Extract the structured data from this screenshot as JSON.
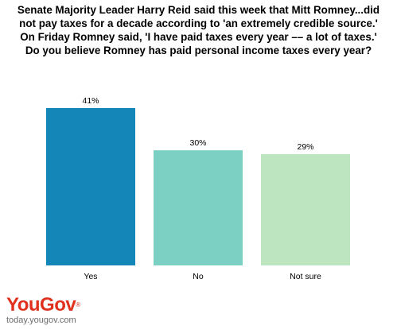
{
  "title_lines": [
    "Senate Majority Leader Harry Reid said this week that Mitt Romney...did",
    "not pay taxes for a decade according to 'an extremely credible source.'",
    "On Friday Romney said, 'I have paid taxes every year –– a lot of taxes.'",
    "Do you believe Romney has paid personal income taxes every year?"
  ],
  "brand": {
    "logo_you": "You",
    "logo_gov": "Gov",
    "logo_mark": "®",
    "url": "today.yougov.com"
  },
  "colors": {
    "yes": "#1487b8",
    "no": "#7ccfc3",
    "not_sure": "#bde5c0",
    "brand": "#e0301e"
  },
  "chart_data": {
    "type": "bar",
    "categories": [
      "Yes",
      "No",
      "Not sure"
    ],
    "values": [
      41,
      30,
      29
    ],
    "value_labels": [
      "41%",
      "30%",
      "29%"
    ],
    "bar_colors": [
      "#1487b8",
      "#7ccfc3",
      "#bde5c0"
    ],
    "ylim": [
      0,
      41
    ],
    "grid": false,
    "legend": "none",
    "xlabel": "",
    "ylabel": ""
  }
}
